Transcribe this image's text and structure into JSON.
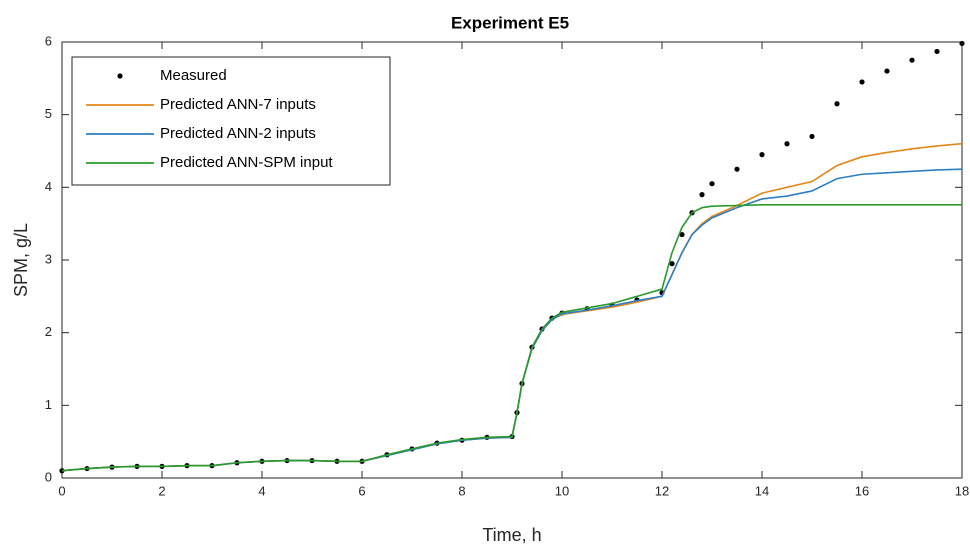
{
  "chart_data": {
    "type": "line",
    "title": "Experiment E5",
    "x_label": "Time, h",
    "y_label": "SPM, g/L",
    "x": [
      0,
      0.5,
      1,
      1.5,
      2,
      2.5,
      3,
      3.5,
      4,
      4.5,
      5,
      5.5,
      6,
      6.5,
      7,
      7.5,
      8,
      8.5,
      9,
      9.1,
      9.2,
      9.4,
      9.6,
      9.8,
      10,
      10.5,
      11,
      11.5,
      12,
      12.2,
      12.4,
      12.6,
      12.8,
      13,
      13.5,
      14,
      14.5,
      15,
      15.5,
      16,
      16.5,
      17,
      17.5,
      18
    ],
    "series": [
      {
        "name": "Measured",
        "color": "#000000",
        "marker": "dot",
        "values": [
          0.1,
          0.13,
          0.15,
          0.16,
          0.16,
          0.17,
          0.17,
          0.21,
          0.23,
          0.24,
          0.24,
          0.23,
          0.23,
          0.32,
          0.4,
          0.48,
          0.52,
          0.56,
          0.57,
          0.9,
          1.3,
          1.8,
          2.05,
          2.2,
          2.27,
          2.33,
          2.38,
          2.45,
          2.55,
          2.95,
          3.35,
          3.65,
          3.9,
          4.05,
          4.25,
          4.45,
          4.6,
          4.7,
          5.15,
          5.45,
          5.6,
          5.75,
          5.87,
          5.98
        ]
      },
      {
        "name": "Predicted ANN-7 inputs",
        "color": "#e5861a",
        "values": [
          0.1,
          0.13,
          0.15,
          0.16,
          0.16,
          0.17,
          0.17,
          0.21,
          0.23,
          0.24,
          0.24,
          0.23,
          0.23,
          0.31,
          0.39,
          0.47,
          0.52,
          0.55,
          0.56,
          0.9,
          1.3,
          1.78,
          2.03,
          2.18,
          2.25,
          2.3,
          2.35,
          2.42,
          2.5,
          2.8,
          3.1,
          3.35,
          3.5,
          3.6,
          3.75,
          3.92,
          4.0,
          4.08,
          4.3,
          4.42,
          4.48,
          4.53,
          4.57,
          4.6
        ]
      },
      {
        "name": "Predicted ANN-2 inputs",
        "color": "#2e7fc2",
        "values": [
          0.1,
          0.13,
          0.15,
          0.16,
          0.16,
          0.17,
          0.17,
          0.21,
          0.23,
          0.24,
          0.24,
          0.23,
          0.23,
          0.31,
          0.39,
          0.47,
          0.52,
          0.55,
          0.56,
          0.9,
          1.3,
          1.78,
          2.03,
          2.18,
          2.26,
          2.31,
          2.37,
          2.44,
          2.5,
          2.8,
          3.1,
          3.35,
          3.48,
          3.58,
          3.72,
          3.84,
          3.88,
          3.95,
          4.12,
          4.18,
          4.2,
          4.22,
          4.24,
          4.25
        ]
      },
      {
        "name": "Predicted ANN-SPM input",
        "color": "#2a9a2a",
        "values": [
          0.1,
          0.13,
          0.15,
          0.16,
          0.16,
          0.17,
          0.17,
          0.21,
          0.23,
          0.24,
          0.24,
          0.23,
          0.23,
          0.32,
          0.4,
          0.48,
          0.53,
          0.56,
          0.57,
          0.9,
          1.3,
          1.8,
          2.05,
          2.2,
          2.28,
          2.34,
          2.4,
          2.5,
          2.6,
          3.1,
          3.45,
          3.65,
          3.72,
          3.74,
          3.75,
          3.76,
          3.76,
          3.76,
          3.76,
          3.76,
          3.76,
          3.76,
          3.76,
          3.76
        ]
      }
    ],
    "xlim": [
      0,
      18
    ],
    "xticks": [
      0,
      2,
      4,
      6,
      8,
      10,
      12,
      14,
      16,
      18
    ],
    "ylim": [
      0,
      6
    ],
    "yticks": [
      0,
      1,
      2,
      3,
      4,
      5,
      6
    ],
    "legend": "top-left",
    "grid": false
  }
}
